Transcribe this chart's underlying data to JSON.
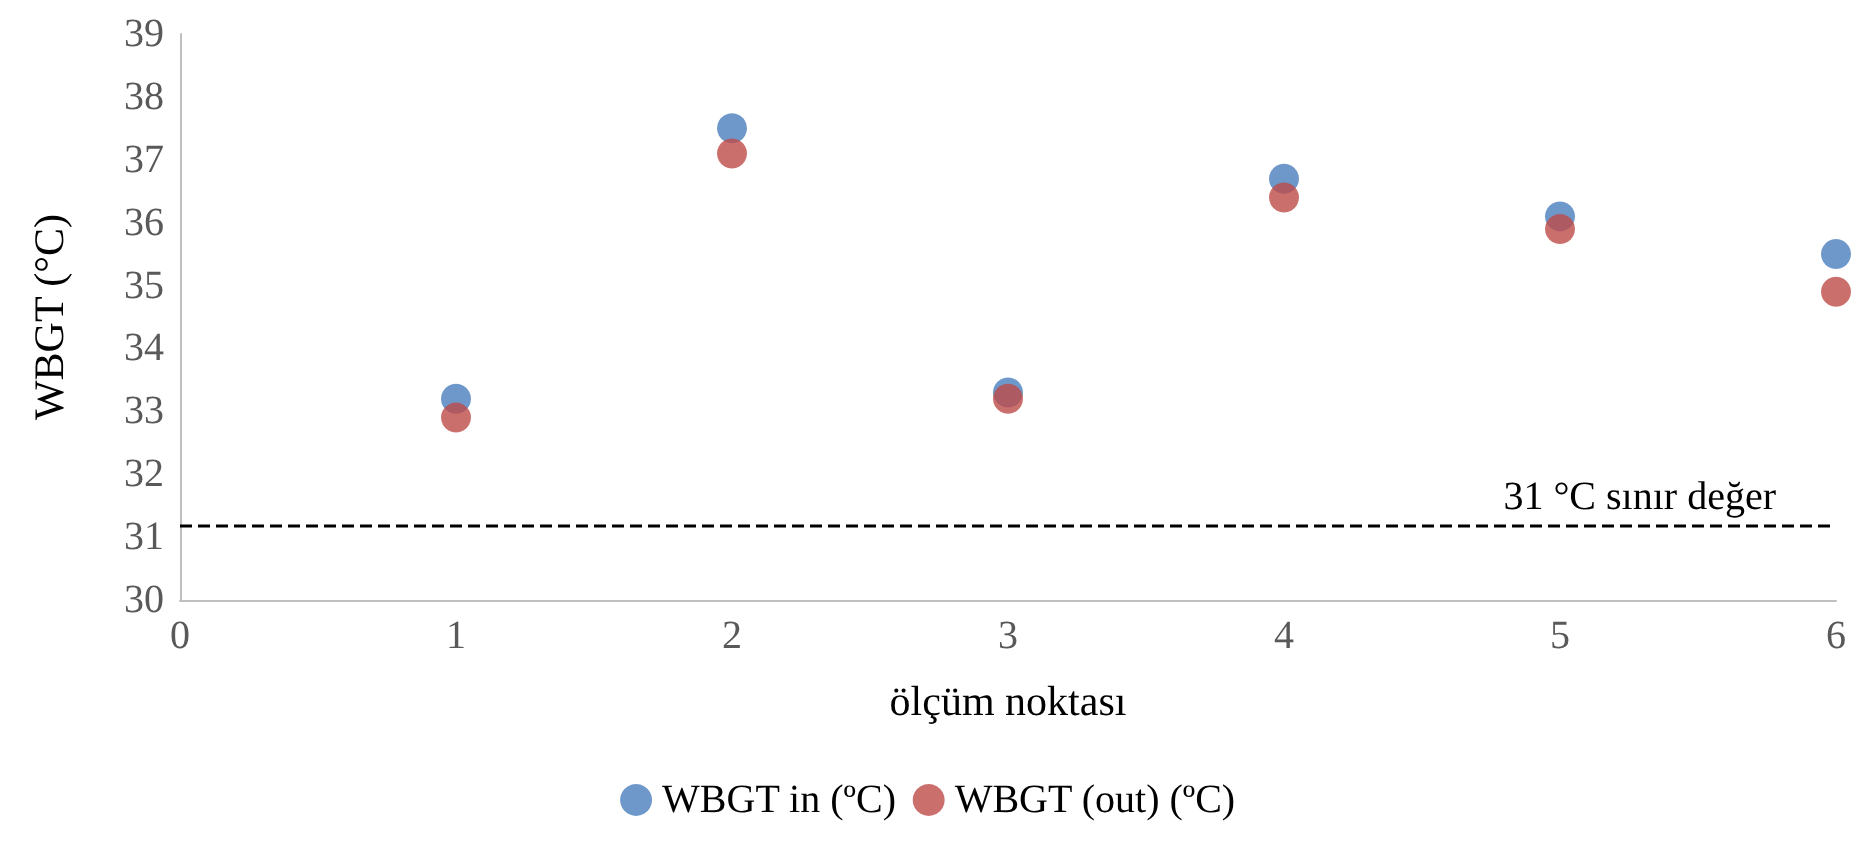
{
  "chart_data": {
    "type": "scatter",
    "xlabel": "ölçüm noktası",
    "ylabel": "WBGT (°C)",
    "x": [
      1,
      2,
      3,
      4,
      5,
      6
    ],
    "series": [
      {
        "name": "WBGT in (ºC)",
        "color": "#4a7ebb",
        "values": [
          33.2,
          37.5,
          33.3,
          36.7,
          36.1,
          35.5
        ]
      },
      {
        "name": "WBGT (out) (ºC)",
        "color": "#be4b48",
        "values": [
          32.9,
          37.1,
          33.2,
          36.4,
          35.9,
          34.9
        ]
      }
    ],
    "xlim": [
      0,
      6
    ],
    "xticks": [
      0,
      1,
      2,
      3,
      4,
      5,
      6
    ],
    "ylim": [
      30,
      39
    ],
    "yticks": [
      30,
      31,
      32,
      33,
      34,
      35,
      36,
      37,
      38,
      39
    ],
    "ref_lines": [
      {
        "axis": "y",
        "value": 31.2,
        "label": "31 °C sınır değer",
        "color": "#000000",
        "line_style": "dashed"
      }
    ],
    "grid": false,
    "legend": "bottom",
    "marker": "circle"
  }
}
